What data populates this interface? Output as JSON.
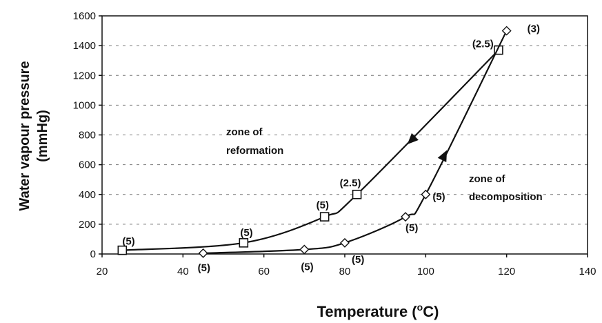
{
  "chart_data": {
    "type": "line",
    "title": "",
    "xlabel": "Temperature (",
    "xlabel_sup": "o",
    "xlabel_unit": "C)",
    "ylabel_line1": "Water vapour pressure",
    "ylabel_line2": "(mmHg)",
    "xlim": [
      20,
      140
    ],
    "ylim": [
      0,
      1600
    ],
    "xticks": [
      "20",
      "40",
      "60",
      "80",
      "100",
      "120",
      "140"
    ],
    "yticks": [
      "0",
      "200",
      "400",
      "600",
      "800",
      "1000",
      "1200",
      "1400",
      "1600"
    ],
    "grid": "horizontal-dashed",
    "series": [
      {
        "marker": "square",
        "x": [
          25,
          55,
          75,
          83,
          118
        ],
        "y": [
          25,
          75,
          250,
          400,
          1370
        ],
        "labels": [
          "(5)",
          "(5)",
          "(5)",
          "(2.5)",
          "(2.5)"
        ],
        "direction": "decreasing"
      },
      {
        "marker": "diamond",
        "x": [
          45,
          70,
          80,
          95,
          100,
          120
        ],
        "y": [
          5,
          30,
          75,
          250,
          400,
          1500
        ],
        "labels": [
          "(5)",
          "(5)",
          "(5)",
          "(5)",
          "(5)",
          "(3)"
        ],
        "direction": "increasing"
      }
    ],
    "annotations": [
      {
        "line1": "zone of",
        "line2": "reformation"
      },
      {
        "line1": "zone of",
        "line2": "decomposition"
      }
    ]
  }
}
